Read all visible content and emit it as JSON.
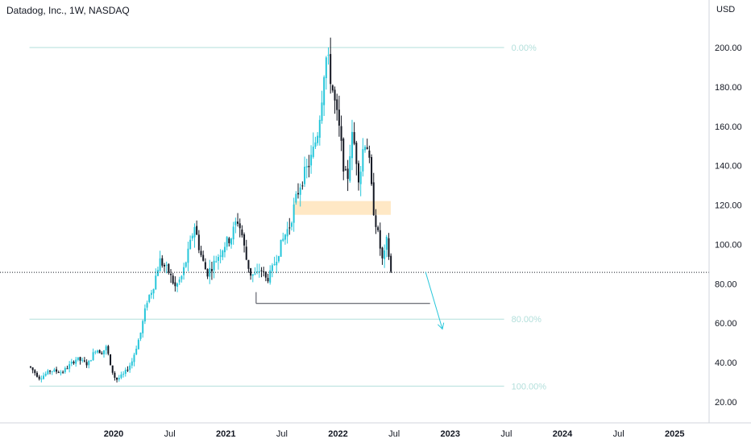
{
  "header": {
    "title": "Datadog, Inc., 1W, NASDAQ",
    "currency": "USD"
  },
  "colors": {
    "up": "#26c6da",
    "down": "#131722",
    "fib": "#b2dfdb",
    "fib_label": "#b2dfdb",
    "zone": "#ffe0b2",
    "support": "#434651",
    "arrow": "#26c6da",
    "axis_text": "#131722",
    "price_line": "#131722"
  },
  "chart_data": {
    "type": "candlestick",
    "title": "Datadog, Inc., 1W, NASDAQ",
    "ylabel": "USD",
    "ylim": [
      14,
      213
    ],
    "xlim": [
      2019.18,
      2025.45
    ],
    "y_ticks": [
      20,
      40,
      60,
      80,
      100,
      120,
      140,
      160,
      180,
      200
    ],
    "x_ticks": [
      {
        "t": 2020.0,
        "label": "2020",
        "bold": true
      },
      {
        "t": 2020.5,
        "label": "Jul",
        "bold": false
      },
      {
        "t": 2021.0,
        "label": "2021",
        "bold": true
      },
      {
        "t": 2021.5,
        "label": "Jul",
        "bold": false
      },
      {
        "t": 2022.0,
        "label": "2022",
        "bold": true
      },
      {
        "t": 2022.5,
        "label": "Jul",
        "bold": false
      },
      {
        "t": 2023.0,
        "label": "2023",
        "bold": true
      },
      {
        "t": 2023.5,
        "label": "Jul",
        "bold": false
      },
      {
        "t": 2024.0,
        "label": "2024",
        "bold": true
      },
      {
        "t": 2024.5,
        "label": "Jul",
        "bold": false
      },
      {
        "t": 2025.0,
        "label": "2025",
        "bold": true
      }
    ],
    "fib_levels": [
      {
        "label": "0.00%",
        "price": 200,
        "t_start": 2019.25,
        "t_end": 2023.48
      },
      {
        "label": "80.00%",
        "price": 62,
        "t_start": 2019.25,
        "t_end": 2023.48
      },
      {
        "label": "100.00%",
        "price": 28,
        "t_start": 2019.25,
        "t_end": 2023.48
      }
    ],
    "zone": {
      "t_start": 2021.61,
      "t_end": 2022.47,
      "price_low": 115,
      "price_high": 122
    },
    "support_line": {
      "t_start": 2021.27,
      "t_end": 2022.82,
      "price": 70
    },
    "current_price": 85.8,
    "arrow": {
      "t_start": 2022.78,
      "price_start": 86,
      "t_end": 2022.93,
      "price_end": 57
    },
    "anchors": [
      [
        2019.26,
        38
      ],
      [
        2019.35,
        32
      ],
      [
        2019.45,
        36
      ],
      [
        2019.55,
        35
      ],
      [
        2019.68,
        42
      ],
      [
        2019.78,
        39
      ],
      [
        2019.85,
        47
      ],
      [
        2019.9,
        45
      ],
      [
        2019.95,
        48
      ],
      [
        2019.98,
        38
      ],
      [
        2020.03,
        31
      ],
      [
        2020.1,
        34
      ],
      [
        2020.17,
        40
      ],
      [
        2020.25,
        55
      ],
      [
        2020.31,
        72
      ],
      [
        2020.36,
        78
      ],
      [
        2020.42,
        92
      ],
      [
        2020.5,
        86
      ],
      [
        2020.56,
        78
      ],
      [
        2020.62,
        84
      ],
      [
        2020.68,
        97
      ],
      [
        2020.73,
        110
      ],
      [
        2020.78,
        96
      ],
      [
        2020.84,
        85
      ],
      [
        2020.9,
        90
      ],
      [
        2020.95,
        95
      ],
      [
        2021.0,
        100
      ],
      [
        2021.06,
        104
      ],
      [
        2021.11,
        113
      ],
      [
        2021.15,
        106
      ],
      [
        2021.19,
        93
      ],
      [
        2021.23,
        85
      ],
      [
        2021.28,
        84
      ],
      [
        2021.32,
        88
      ],
      [
        2021.37,
        82
      ],
      [
        2021.41,
        85
      ],
      [
        2021.47,
        95
      ],
      [
        2021.53,
        104
      ],
      [
        2021.58,
        110
      ],
      [
        2021.63,
        122
      ],
      [
        2021.68,
        132
      ],
      [
        2021.73,
        138
      ],
      [
        2021.78,
        145
      ],
      [
        2021.83,
        158
      ],
      [
        2021.87,
        178
      ],
      [
        2021.89,
        192
      ],
      [
        2021.91,
        196
      ],
      [
        2021.94,
        186
      ],
      [
        2021.98,
        172
      ],
      [
        2022.02,
        158
      ],
      [
        2022.06,
        140
      ],
      [
        2022.09,
        130
      ],
      [
        2022.11,
        145
      ],
      [
        2022.14,
        156
      ],
      [
        2022.17,
        145
      ],
      [
        2022.2,
        132
      ],
      [
        2022.23,
        148
      ],
      [
        2022.26,
        155
      ],
      [
        2022.29,
        140
      ],
      [
        2022.32,
        120
      ],
      [
        2022.35,
        110
      ],
      [
        2022.38,
        100
      ],
      [
        2022.41,
        90
      ],
      [
        2022.43,
        97
      ],
      [
        2022.45,
        104
      ],
      [
        2022.47,
        88
      ],
      [
        2022.49,
        84
      ]
    ],
    "grid": false
  }
}
